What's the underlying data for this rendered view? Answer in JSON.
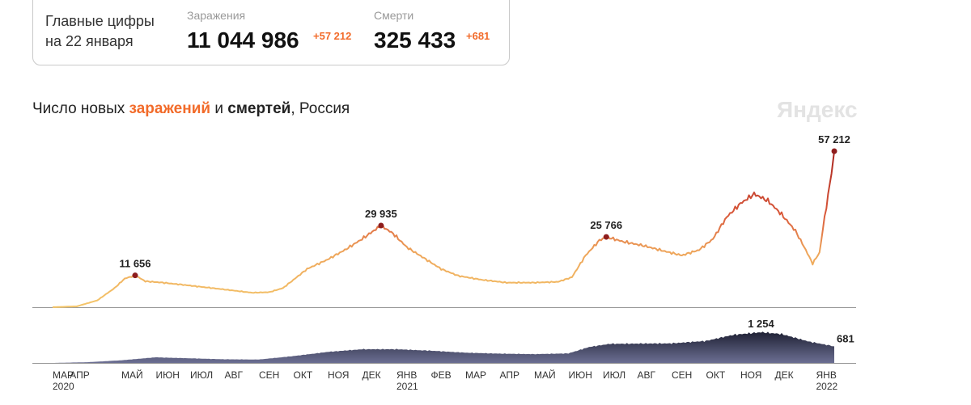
{
  "summary": {
    "heading_line1": "Главные цифры",
    "heading_line2": "на 22 января",
    "infections": {
      "label": "Заражения",
      "total": "11 044 986",
      "delta": "+57 212"
    },
    "deaths": {
      "label": "Смерти",
      "total": "325 433",
      "delta": "+681"
    }
  },
  "watermark": "Яндекс",
  "chart_data": {
    "type": "line",
    "title_parts": [
      "Число новых ",
      "заражений",
      " и ",
      "смертей",
      ", Россия"
    ],
    "x_unit": "months since March 2020",
    "xticks": [
      {
        "label": "МАР",
        "year": "2020",
        "m": 0
      },
      {
        "label": "АПР",
        "m": 0.5
      },
      {
        "label": "МАЙ",
        "m": 2
      },
      {
        "label": "ИЮН",
        "m": 3
      },
      {
        "label": "ИЮЛ",
        "m": 4
      },
      {
        "label": "АВГ",
        "m": 5
      },
      {
        "label": "СЕН",
        "m": 6
      },
      {
        "label": "ОКТ",
        "m": 7
      },
      {
        "label": "НОЯ",
        "m": 8
      },
      {
        "label": "ДЕК",
        "m": 9
      },
      {
        "label": "ЯНВ",
        "year": "2021",
        "m": 10
      },
      {
        "label": "ФЕВ",
        "m": 11
      },
      {
        "label": "МАР",
        "m": 12
      },
      {
        "label": "АПР",
        "m": 13
      },
      {
        "label": "МАЙ",
        "m": 14
      },
      {
        "label": "ИЮН",
        "m": 15
      },
      {
        "label": "ИЮЛ",
        "m": 16
      },
      {
        "label": "АВГ",
        "m": 17
      },
      {
        "label": "СЕН",
        "m": 18
      },
      {
        "label": "ОКТ",
        "m": 19
      },
      {
        "label": "НОЯ",
        "m": 20
      },
      {
        "label": "ДЕК",
        "m": 21
      },
      {
        "label": "ЯНВ",
        "year": "2022",
        "m": 22.2
      }
    ],
    "infections": {
      "name": "заражения",
      "ylim": [
        0,
        57212
      ],
      "points": [
        [
          0,
          0
        ],
        [
          0.7,
          300
        ],
        [
          1.3,
          2500
        ],
        [
          1.8,
          7000
        ],
        [
          2.1,
          10500
        ],
        [
          2.4,
          11656
        ],
        [
          2.7,
          9500
        ],
        [
          3.2,
          9000
        ],
        [
          3.8,
          8200
        ],
        [
          4.5,
          7200
        ],
        [
          5.2,
          6200
        ],
        [
          5.8,
          5300
        ],
        [
          6.3,
          5500
        ],
        [
          6.7,
          7000
        ],
        [
          7,
          10000
        ],
        [
          7.4,
          14000
        ],
        [
          8,
          17500
        ],
        [
          8.5,
          21000
        ],
        [
          9,
          25000
        ],
        [
          9.55,
          29935
        ],
        [
          9.9,
          27000
        ],
        [
          10.3,
          22000
        ],
        [
          10.8,
          18000
        ],
        [
          11.3,
          14000
        ],
        [
          11.8,
          11500
        ],
        [
          12.5,
          10000
        ],
        [
          13.2,
          9000
        ],
        [
          14,
          9000
        ],
        [
          14.7,
          9300
        ],
        [
          15.1,
          11000
        ],
        [
          15.5,
          19000
        ],
        [
          15.9,
          24500
        ],
        [
          16.1,
          25766
        ],
        [
          16.6,
          24000
        ],
        [
          17.2,
          22500
        ],
        [
          17.8,
          20500
        ],
        [
          18.3,
          19000
        ],
        [
          18.8,
          21000
        ],
        [
          19.2,
          25000
        ],
        [
          19.6,
          33000
        ],
        [
          20,
          38000
        ],
        [
          20.4,
          41500
        ],
        [
          20.8,
          39000
        ],
        [
          21.2,
          34000
        ],
        [
          21.6,
          28000
        ],
        [
          21.9,
          21000
        ],
        [
          22.1,
          16000
        ],
        [
          22.3,
          20000
        ],
        [
          22.45,
          33000
        ],
        [
          22.6,
          45000
        ],
        [
          22.73,
          57212
        ]
      ],
      "labels": [
        {
          "m": 2.4,
          "value": "11 656"
        },
        {
          "m": 9.55,
          "value": "29 935"
        },
        {
          "m": 16.1,
          "value": "25 766"
        },
        {
          "m": 22.73,
          "value": "57 212"
        }
      ]
    },
    "deaths": {
      "name": "смерти",
      "ylim": [
        0,
        1254
      ],
      "points": [
        [
          0,
          0
        ],
        [
          1,
          30
        ],
        [
          2,
          110
        ],
        [
          3,
          230
        ],
        [
          4,
          190
        ],
        [
          5,
          150
        ],
        [
          6,
          140
        ],
        [
          7,
          280
        ],
        [
          8,
          450
        ],
        [
          9,
          560
        ],
        [
          10,
          560
        ],
        [
          11,
          500
        ],
        [
          12,
          420
        ],
        [
          13,
          380
        ],
        [
          14,
          360
        ],
        [
          15,
          390
        ],
        [
          15.6,
          650
        ],
        [
          16.2,
          780
        ],
        [
          17,
          790
        ],
        [
          18,
          800
        ],
        [
          19,
          900
        ],
        [
          19.8,
          1150
        ],
        [
          20.6,
          1254
        ],
        [
          21.2,
          1180
        ],
        [
          22,
          870
        ],
        [
          22.73,
          681
        ]
      ],
      "labels": [
        {
          "m": 20.6,
          "value": "1 254"
        },
        {
          "m": 22.73,
          "value": "681"
        }
      ]
    }
  }
}
